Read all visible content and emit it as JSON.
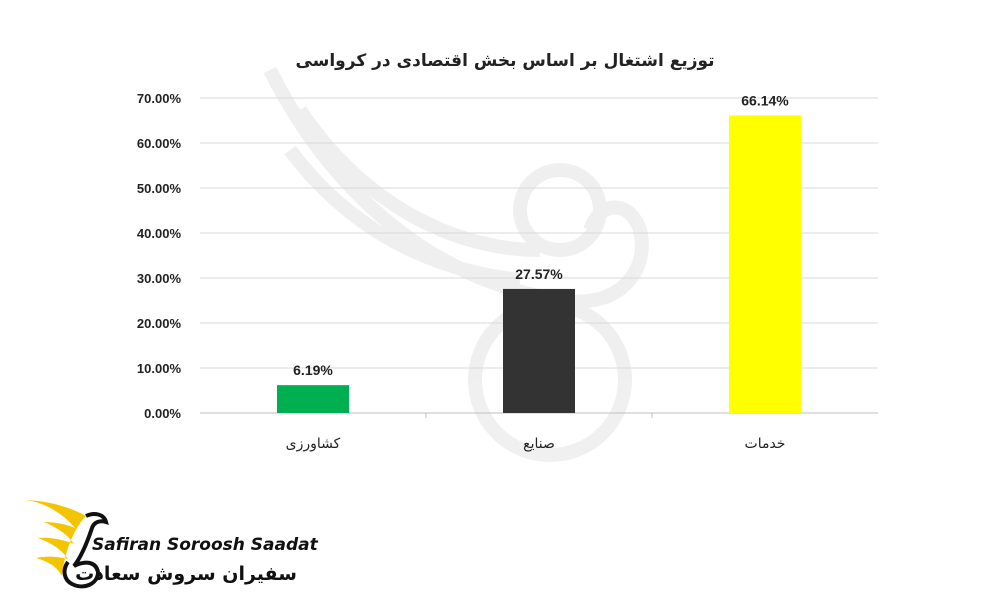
{
  "chart_data": {
    "type": "bar",
    "title": "توزیع اشتغال بر اساس بخش اقتصادی در کرواسی",
    "categories": [
      "کشاورزی",
      "صنایع",
      "خدمات"
    ],
    "values": [
      6.19,
      27.57,
      66.14
    ],
    "value_labels": [
      "6.19%",
      "27.57%",
      "66.14%"
    ],
    "colors": [
      "#00b050",
      "#333333",
      "#ffff00"
    ],
    "ylim": [
      0,
      70
    ],
    "y_ticks": [
      "0.00%",
      "10.00%",
      "20.00%",
      "30.00%",
      "40.00%",
      "50.00%",
      "60.00%",
      "70.00%"
    ],
    "grid": true,
    "legend": "none"
  },
  "brand": {
    "name_en": "Safiran Soroosh Saadat",
    "name_fa": "سفیران سروش سعادت",
    "accent": "#f5c400"
  }
}
